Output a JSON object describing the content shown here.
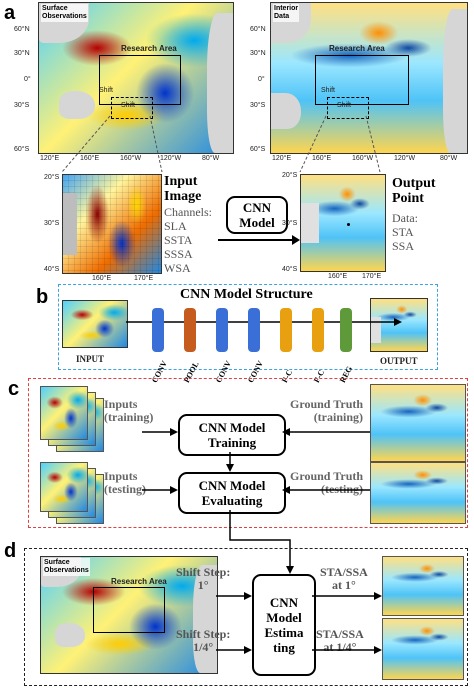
{
  "panels": {
    "a": {
      "letter": "a",
      "map1_tag": "Surface\nObservations",
      "map2_tag": "Interior\nData",
      "research_area": "Research Area",
      "shift": "Shift",
      "lat_ticks": [
        "60°N",
        "30°N",
        "0°",
        "30°S",
        "60°S"
      ],
      "lon_ticks": [
        "120°E",
        "160°E",
        "160°W",
        "120°W",
        "80°W"
      ],
      "input_title": "Input\nImage",
      "channels_title": "Channels:",
      "channels": [
        "SLA",
        "SSTA",
        "SSSA",
        "WSA"
      ],
      "model_label": "CNN\nModel",
      "output_title": "Output\nPoint",
      "data_title": "Data:",
      "data": [
        "STA",
        "SSA"
      ],
      "crop_lat": [
        "20°S",
        "30°S",
        "40°S"
      ],
      "crop_lon": [
        "160°E",
        "170°E"
      ]
    },
    "b": {
      "letter": "b",
      "title": "CNN Model Structure",
      "input": "INPUT",
      "output": "OUTPUT",
      "layers": [
        "CONV",
        "POOL",
        "CONV",
        "CONV",
        "F-C",
        "F-C",
        "REG"
      ],
      "layer_colors": [
        "#3a6fd8",
        "#c65b1e",
        "#3a6fd8",
        "#3a6fd8",
        "#e8a010",
        "#e8a010",
        "#5f9a3a"
      ]
    },
    "c": {
      "letter": "c",
      "inputs_training": "Inputs\n(training)",
      "inputs_testing": "Inputs\n(testing)",
      "gt_training": "Ground Truth\n(training)",
      "gt_testing": "Ground Truth\n(testing)",
      "train_box": "CNN Model\nTraining",
      "eval_box": "CNN Model\nEvaluating"
    },
    "d": {
      "letter": "d",
      "map_tag": "Surface\nObservations",
      "research_area": "Research Area",
      "shift_step_1": "Shift Step:\n1°",
      "shift_step_2": "Shift Step:\n1/4°",
      "estimating_box": "CNN\nModel\nEstima\nting",
      "out_1": "STA/SSA\nat 1°",
      "out_2": "STA/SSA\nat 1/4°"
    }
  }
}
